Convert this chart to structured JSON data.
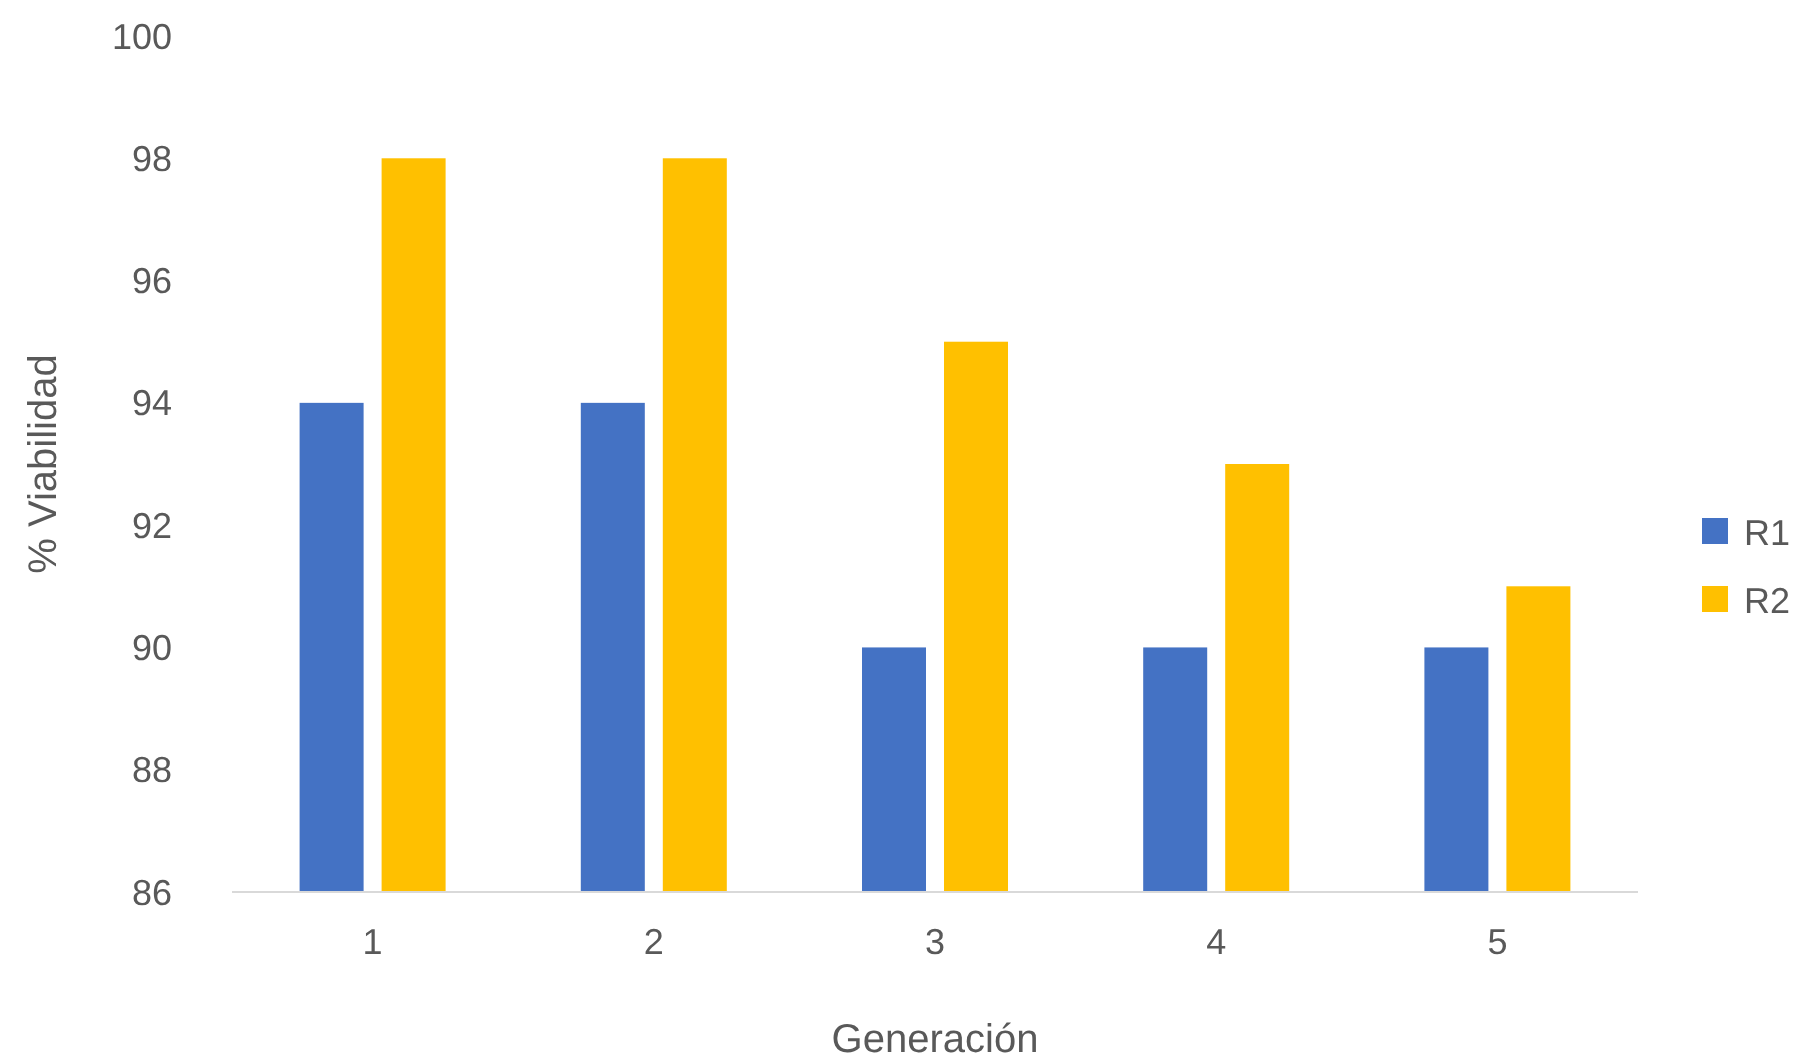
{
  "chart_data": {
    "type": "bar",
    "xlabel": "Generación",
    "ylabel": "% Viabilidad",
    "categories": [
      "1",
      "2",
      "3",
      "4",
      "5"
    ],
    "series": [
      {
        "name": "R1",
        "color": "#4472c4",
        "values": [
          94,
          94,
          90,
          90,
          90
        ]
      },
      {
        "name": "R2",
        "color": "#ffc000",
        "values": [
          98,
          98,
          95,
          93,
          91
        ]
      }
    ],
    "ylim": [
      86,
      100
    ],
    "yticks": [
      86,
      88,
      90,
      92,
      94,
      96,
      98,
      100
    ],
    "grid": false,
    "legend": "right"
  }
}
